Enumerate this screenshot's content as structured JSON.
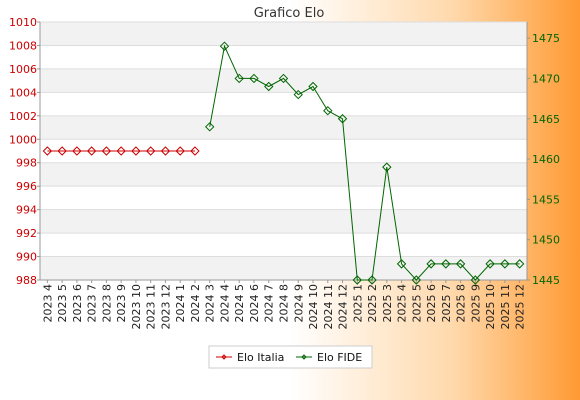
{
  "chart_data": {
    "type": "line",
    "title": "Grafico Elo",
    "categories": [
      "2023 4",
      "2023 5",
      "2023 6",
      "2023 7",
      "2023 8",
      "2023 9",
      "2023 10",
      "2023 11",
      "2023 12",
      "2024 1",
      "2024 2",
      "2024 3",
      "2024 4",
      "2024 5",
      "2024 6",
      "2024 7",
      "2024 8",
      "2024 9",
      "2024 10",
      "2024 11",
      "2024 12",
      "2025 1",
      "2025 2",
      "2025 3",
      "2025 4",
      "2025 5",
      "2025 6",
      "2025 7",
      "2025 8",
      "2025 9",
      "2025 10",
      "2025 11",
      "2025 12"
    ],
    "left_axis": {
      "range": [
        988,
        1010
      ],
      "ticks": [
        988,
        990,
        992,
        994,
        996,
        998,
        1000,
        1002,
        1004,
        1006,
        1008,
        1010
      ],
      "color": "#cc0000"
    },
    "right_axis": {
      "range": [
        1445,
        1477
      ],
      "ticks": [
        1445,
        1450,
        1455,
        1460,
        1465,
        1470,
        1475
      ],
      "color": "#006600"
    },
    "series": [
      {
        "name": "Elo Italia",
        "axis": "left",
        "color": "#cc0000",
        "values": [
          999,
          999,
          999,
          999,
          999,
          999,
          999,
          999,
          999,
          999,
          999,
          null,
          null,
          null,
          null,
          null,
          null,
          null,
          null,
          null,
          null,
          null,
          null,
          null,
          null,
          null,
          null,
          null,
          null,
          null,
          null,
          null,
          null
        ]
      },
      {
        "name": "Elo FIDE",
        "axis": "right",
        "color": "#006600",
        "values": [
          null,
          null,
          null,
          null,
          null,
          null,
          null,
          null,
          null,
          null,
          null,
          1464,
          1474,
          1470,
          1470,
          1469,
          1470,
          1468,
          1469,
          1466,
          1465,
          1445,
          1445,
          1459,
          1447,
          1445,
          1447,
          1447,
          1447,
          1445,
          1447,
          1447,
          1447
        ]
      }
    ],
    "grid": true,
    "legend_position": "bottom"
  }
}
